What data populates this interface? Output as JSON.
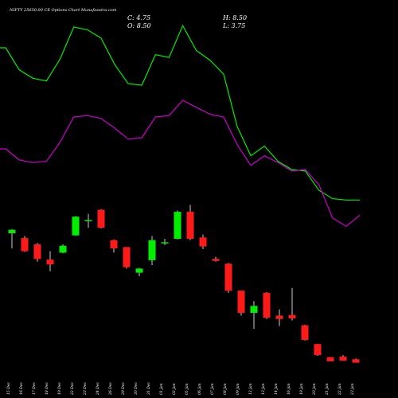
{
  "header": {
    "title": "NIFTY 25650.00 CE Options Chart Munafasutra.com",
    "close_label": "C: 4.75",
    "high_label": "H: 8.50",
    "open_label": "O: 8.50",
    "low_label": "L: 3.75"
  },
  "chart_data": {
    "type": "candlestick",
    "title": "NIFTY 25650.00 CE Options Chart Munafasutra.com",
    "categories": [
      "15 Dec",
      "16 Dec",
      "17 Dec",
      "18 Dec",
      "19 Dec",
      "22 Dec",
      "23 Dec",
      "24 Dec",
      "26 Dec",
      "29 Dec",
      "30 Dec",
      "31 Dec",
      "01 Jan",
      "02 Jan",
      "05 Jan",
      "06 Jan",
      "07 Jan",
      "08 Jan",
      "09 Jan",
      "12 Jan",
      "13 Jan",
      "14 Jan",
      "16 Jan",
      "19 Jan",
      "20 Jan",
      "21 Jan",
      "22 Jan",
      "23 Jan"
    ],
    "ohlc": [
      {
        "o": 66.0,
        "h": 69.0,
        "l": 55.0,
        "c": 68.5
      },
      {
        "o": 62.5,
        "h": 64.0,
        "l": 52.5,
        "c": 53.0
      },
      {
        "o": 58.0,
        "h": 59.0,
        "l": 45.5,
        "c": 47.5
      },
      {
        "o": 47.0,
        "h": 53.0,
        "l": 38.5,
        "c": 43.5
      },
      {
        "o": 52.0,
        "h": 58.0,
        "l": 51.5,
        "c": 57.0
      },
      {
        "o": 64.5,
        "h": 78.5,
        "l": 64.0,
        "c": 78.0
      },
      {
        "o": 75.5,
        "h": 80.0,
        "l": 70.0,
        "c": 75.5
      },
      {
        "o": 83.0,
        "h": 83.5,
        "l": 69.5,
        "c": 70.0
      },
      {
        "o": 61.0,
        "h": 61.5,
        "l": 52.0,
        "c": 55.0
      },
      {
        "o": 56.0,
        "h": 56.0,
        "l": 40.5,
        "c": 41.5
      },
      {
        "o": 37.5,
        "h": 41.0,
        "l": 35.0,
        "c": 40.5
      },
      {
        "o": 46.5,
        "h": 64.0,
        "l": 43.0,
        "c": 61.0
      },
      {
        "o": 59.0,
        "h": 62.0,
        "l": 57.5,
        "c": 59.5
      },
      {
        "o": 62.0,
        "h": 82.5,
        "l": 61.5,
        "c": 81.5
      },
      {
        "o": 81.5,
        "h": 86.5,
        "l": 61.0,
        "c": 62.0
      },
      {
        "o": 63.0,
        "h": 65.0,
        "l": 54.5,
        "c": 56.5
      },
      {
        "o": 47.5,
        "h": 49.0,
        "l": 45.5,
        "c": 46.0
      },
      {
        "o": 44.0,
        "h": 44.5,
        "l": 23.0,
        "c": 24.5
      },
      {
        "o": 24.5,
        "h": 24.5,
        "l": 6.5,
        "c": 8.5
      },
      {
        "o": 8.5,
        "h": 17.0,
        "l": -3.0,
        "c": 13.5
      },
      {
        "o": 23.0,
        "h": 23.5,
        "l": 4.0,
        "c": 5.0
      },
      {
        "o": 6.5,
        "h": 11.0,
        "l": -1.0,
        "c": 4.0
      },
      {
        "o": 7.0,
        "h": 26.5,
        "l": 3.0,
        "c": 4.5
      },
      {
        "o": -0.5,
        "h": 0.0,
        "l": -11.5,
        "c": -11.0
      },
      {
        "o": -14.0,
        "h": -14.0,
        "l": -22.5,
        "c": -22.0
      },
      {
        "o": -23.5,
        "h": -24.0,
        "l": -25.5,
        "c": -26.5
      },
      {
        "o": -23.0,
        "h": -22.0,
        "l": -26.0,
        "c": -26.0
      },
      {
        "o": -25.0,
        "h": -24.5,
        "l": -27.5,
        "c": -27.5
      }
    ],
    "ylim": [
      -30,
      200
    ],
    "overlays": [
      {
        "color": "#00ee00",
        "values": [
          200,
          200,
          184,
          178,
          176,
          192,
          215,
          213,
          207,
          188,
          174,
          173,
          195,
          193,
          216,
          198,
          191,
          181,
          143,
          122,
          129,
          118,
          112,
          111,
          97,
          91,
          90,
          90
        ]
      },
      {
        "color": "#cc00cc",
        "values": [
          127,
          127,
          119,
          117,
          118,
          132,
          150,
          151,
          149,
          142,
          134,
          135,
          150,
          151,
          162,
          157,
          152,
          150,
          130,
          115,
          122,
          117,
          111,
          112,
          101,
          77,
          71,
          79
        ]
      }
    ],
    "grid": false
  },
  "style": {
    "background": "#000000",
    "up_color": "#00ee00",
    "down_color": "#ff1a1a",
    "text_color": "#ffffff"
  }
}
